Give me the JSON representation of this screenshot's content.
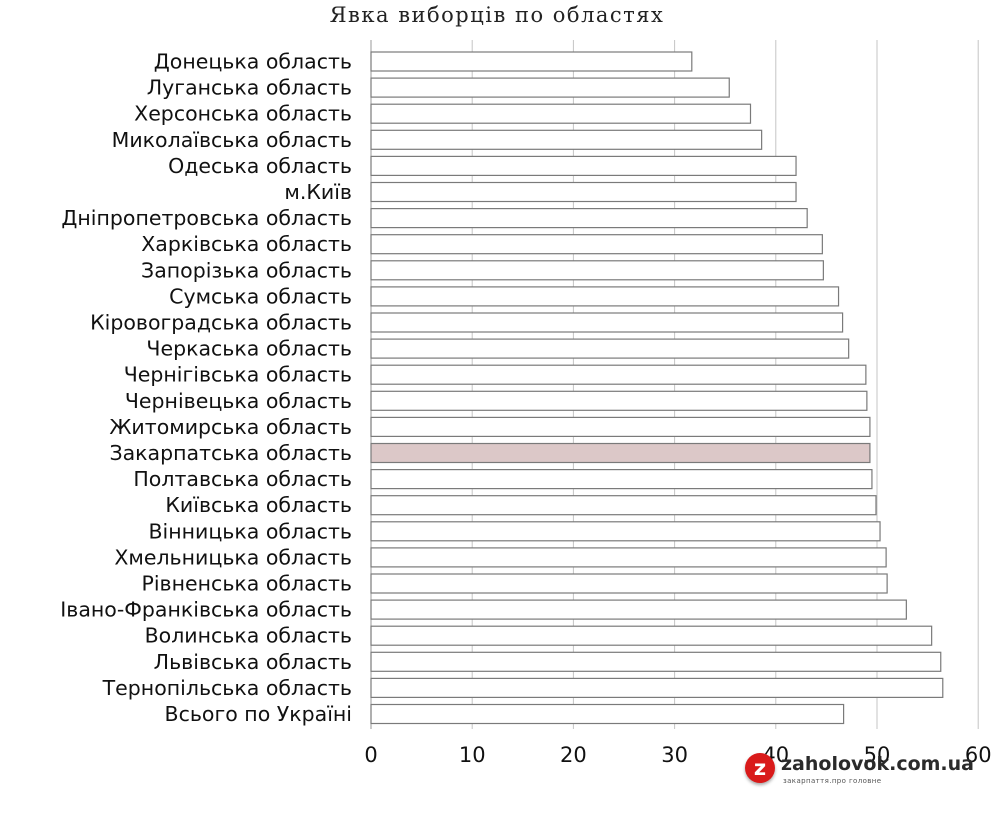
{
  "chart_data": {
    "type": "bar",
    "orientation": "horizontal",
    "title": "Явка виборців по областях",
    "categories": [
      "Донецька область",
      "Луганська область",
      "Херсонська область",
      "Миколаївська область",
      "Одеська область",
      "м.Київ",
      "Дніпропетровська область",
      "Харківська область",
      "Запорізька область",
      "Сумська область",
      "Кіровоградська область",
      "Черкаська область",
      "Чернігівська область",
      "Чернівецька область",
      "Житомирська область",
      "Закарпатська область",
      "Полтавська область",
      "Київська область",
      "Вінницька область",
      "Хмельницька область",
      "Рівненська область",
      "Івано-Франківська область",
      "Волинська область",
      "Львівська область",
      "Тернопільська область",
      "Всього по Україні"
    ],
    "values": [
      31.7,
      35.4,
      37.5,
      38.6,
      42.0,
      42.0,
      43.1,
      44.6,
      44.7,
      46.2,
      46.6,
      47.2,
      48.9,
      49.0,
      49.3,
      49.3,
      49.5,
      49.9,
      50.3,
      50.9,
      51.0,
      52.9,
      55.4,
      56.3,
      56.5,
      46.7
    ],
    "highlight_category": "Закарпатська область",
    "xlim": [
      0,
      60
    ],
    "xticks": [
      0,
      10,
      20,
      30,
      40,
      50,
      60
    ],
    "xlabel": "",
    "ylabel": "",
    "grid": "vertical",
    "colors": {
      "bar": "#ffffff",
      "highlight": "#dcc8c8",
      "bar_edge": "#7a7a7a",
      "grid": "#c4c4c4"
    }
  },
  "logo": {
    "mark": "z",
    "text": "zaholovok.com.ua",
    "tagline": "закарпаття.про головне"
  }
}
